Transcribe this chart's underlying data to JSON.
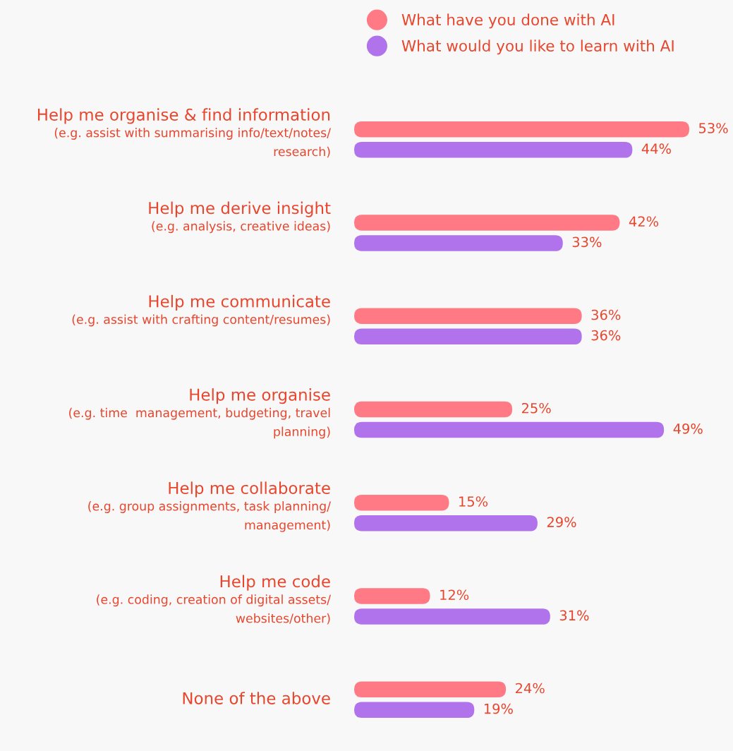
{
  "chart_data": {
    "type": "bar",
    "orientation": "horizontal",
    "categories": [
      "Help me organise & find information\n(e.g. assist with summarising info/text/notes/\nresearch)",
      "Help me derive insight\n(e.g. analysis, creative ideas)",
      "Help me communicate\n(e.g. assist with crafting content/resumes)",
      "Help me organise\n(e.g. time  management, budgeting, travel\nplanning)",
      "Help me collaborate\n(e.g. group assignments, task planning/\nmanagement)",
      "Help me code\n(e.g. coding, creation of digital assets/\nwebsites/other)",
      "None of the above"
    ],
    "series": [
      {
        "name": "What have you done with AI",
        "color": "#ff7a85",
        "values": [
          53,
          42,
          36,
          25,
          15,
          12,
          24
        ],
        "value_labels": [
          "53%",
          "42%",
          "36%",
          "25%",
          "15%",
          "12%",
          "24%"
        ]
      },
      {
        "name": "What would you like to learn with AI",
        "color": "#b073ec",
        "values": [
          44,
          33,
          36,
          49,
          29,
          31,
          19
        ],
        "value_labels": [
          "44%",
          "33%",
          "36%",
          "49%",
          "29%",
          "31%",
          "19%"
        ]
      }
    ],
    "legend": "top"
  }
}
